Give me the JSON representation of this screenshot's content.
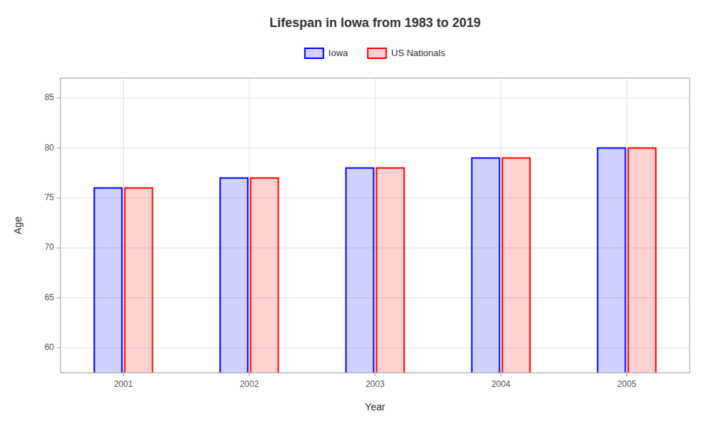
{
  "chart_data": {
    "type": "bar",
    "title": "Lifespan in Iowa from 1983 to 2019",
    "x_label": "Year",
    "y_label": "Age",
    "categories": [
      "2001",
      "2002",
      "2003",
      "2004",
      "2005"
    ],
    "series": [
      {
        "name": "Iowa",
        "color": "#0000ff",
        "values": [
          76.0,
          77.0,
          78.0,
          79.0,
          80.0
        ]
      },
      {
        "name": "US Nationals",
        "color": "#ff0000",
        "values": [
          76.0,
          77.0,
          78.0,
          79.0,
          80.0
        ]
      }
    ],
    "ylim": [
      57.5,
      87
    ],
    "yticks": [
      60,
      65,
      70,
      75,
      80,
      85
    ],
    "grid": true,
    "legend": "top"
  }
}
